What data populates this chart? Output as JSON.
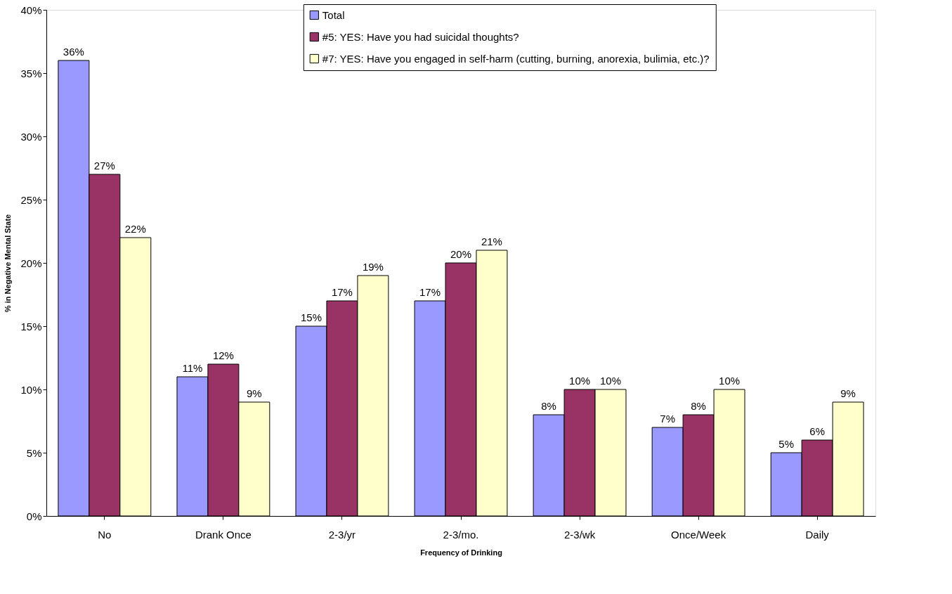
{
  "chart_data": {
    "type": "bar",
    "xlabel": "Frequency of Drinking",
    "ylabel": "% in Negative Mental State",
    "categories": [
      "No",
      "Drank Once",
      "2-3/yr",
      "2-3/mo.",
      "2-3/wk",
      "Once/Week",
      "Daily"
    ],
    "series": [
      {
        "name": "Total",
        "color": "#9999ff",
        "values": [
          36,
          11,
          15,
          17,
          8,
          7,
          5
        ],
        "value_labels": [
          "36%",
          "11%",
          "15%",
          "17%",
          "8%",
          "7%",
          "5%"
        ]
      },
      {
        "name": "#5: YES: Have you had suicidal thoughts?",
        "color": "#993366",
        "values": [
          27,
          12,
          17,
          20,
          10,
          8,
          6
        ],
        "value_labels": [
          "27%",
          "12%",
          "17%",
          "20%",
          "10%",
          "8%",
          "6%"
        ]
      },
      {
        "name": "#7: YES: Have you engaged in self-harm (cutting, burning, anorexia, bulimia, etc.)?",
        "color": "#ffffcc",
        "values": [
          22,
          9,
          19,
          21,
          10,
          10,
          9
        ],
        "value_labels": [
          "22%",
          "9%",
          "19%",
          "21%",
          "10%",
          "10%",
          "9%"
        ]
      }
    ],
    "ylim": [
      0,
      40
    ],
    "yticks": [
      {
        "value": 0,
        "label": "0%"
      },
      {
        "value": 5,
        "label": "5%"
      },
      {
        "value": 10,
        "label": "10%"
      },
      {
        "value": 15,
        "label": "15%"
      },
      {
        "value": 20,
        "label": "20%"
      },
      {
        "value": 25,
        "label": "25%"
      },
      {
        "value": 30,
        "label": "30%"
      },
      {
        "value": 35,
        "label": "35%"
      },
      {
        "value": 40,
        "label": "40%"
      }
    ],
    "grid": false,
    "legend": "top"
  }
}
